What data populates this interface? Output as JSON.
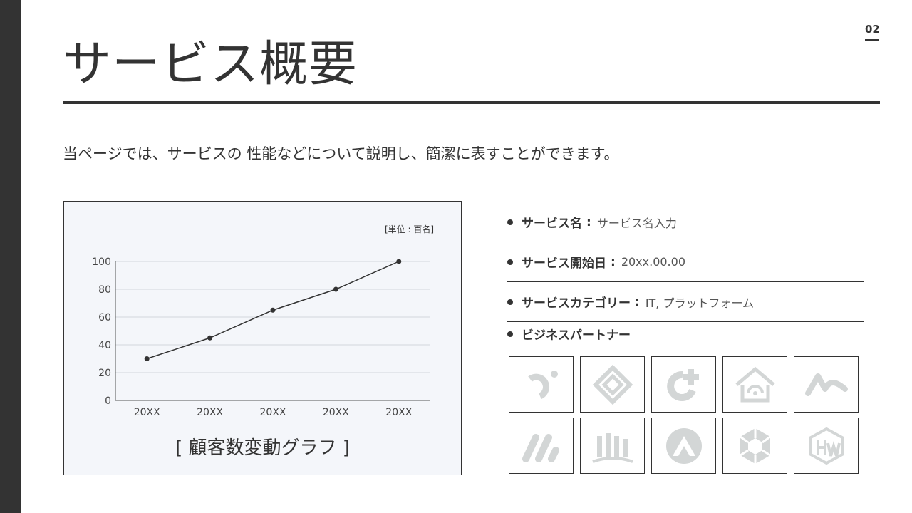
{
  "page": {
    "number": "02",
    "title": "サービス概要",
    "lead": "当ページでは、サービスの 性能などについて説明し、簡潔に表すことができます。",
    "colors": {
      "text": "#333333",
      "chart_bg": "#f4f6fa",
      "logo": "#d3d6d6"
    }
  },
  "chart_data": {
    "type": "line",
    "categories": [
      "20XX",
      "20XX",
      "20XX",
      "20XX",
      "20XX"
    ],
    "values": [
      30,
      45,
      65,
      80,
      100
    ],
    "yticks": [
      0,
      20,
      40,
      60,
      80,
      100
    ],
    "ylim": [
      0,
      100
    ],
    "grid": true,
    "unit_label": "[単位 : 百名]",
    "caption": "[ 顧客数変動グラフ ]"
  },
  "info": {
    "items": [
      {
        "label": "サービス名",
        "sep": ":",
        "value": "サービス名入力"
      },
      {
        "label": "サービス開始日",
        "sep": ":",
        "value": "20xx.00.00"
      },
      {
        "label": "サービスカテゴリー",
        "sep": ":",
        "value": "IT, プラットフォーム"
      }
    ],
    "partners_label": "ビジネスパートナー",
    "partner_logos": [
      "logo-hook-dot-icon",
      "logo-double-diamond-icon",
      "logo-c-plus-icon",
      "logo-house-icon",
      "logo-wave-icon",
      "logo-double-slash-icon",
      "logo-columns-icon",
      "logo-triangle-circle-icon",
      "logo-aperture-icon",
      "logo-hexagon-hw-icon"
    ]
  }
}
